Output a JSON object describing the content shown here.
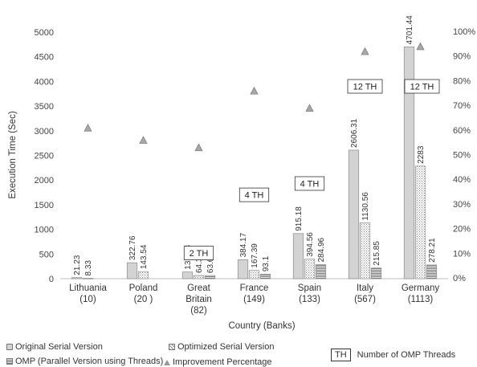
{
  "chart_data": {
    "type": "bar",
    "categories": [
      {
        "name": "Lithuania",
        "banks": "(10)"
      },
      {
        "name": "Poland",
        "banks": "(20 )"
      },
      {
        "name": "Great Britain",
        "banks": "(82)"
      },
      {
        "name": "France",
        "banks": "(149)"
      },
      {
        "name": "Spain",
        "banks": "(133)"
      },
      {
        "name": "Italy",
        "banks": "(567)"
      },
      {
        "name": "Germany",
        "banks": "(1113)"
      }
    ],
    "category_lines": [
      [
        "Lithuania",
        "(10)"
      ],
      [
        "Poland",
        "(20 )"
      ],
      [
        "Great",
        "Britain",
        "(82)"
      ],
      [
        "France",
        "(149)"
      ],
      [
        "Spain",
        "(133)"
      ],
      [
        "Italy",
        "(567)"
      ],
      [
        "Germany",
        "(1113)"
      ]
    ],
    "series": [
      {
        "name": "Original Serial Version",
        "values": [
          21.23,
          322.76,
          135.03,
          384.17,
          915.18,
          2606.31,
          4701.44
        ],
        "labels": [
          "21.23",
          "322.76",
          "135.03",
          "384.17",
          "915.18",
          "2606.31",
          "4701.44"
        ],
        "color": "#d3d3d3"
      },
      {
        "name": "Optimized Serial Version",
        "values": [
          8.33,
          143.54,
          64.39,
          167.39,
          394.56,
          1130.56,
          2283
        ],
        "labels": [
          "8.33",
          "143.54",
          "64.39",
          "167.39",
          "394.56",
          "1130.56",
          "2283"
        ],
        "color": "#f0f0f0"
      },
      {
        "name": "OMP (Parallel Version using Threads)",
        "values": [
          null,
          null,
          63.63,
          93.1,
          284.96,
          215.85,
          278.21
        ],
        "labels": [
          null,
          null,
          "63.63",
          "93.1",
          "284.96",
          "215.85",
          "278.21"
        ],
        "color": "#bdbdbd"
      }
    ],
    "line_series": {
      "name": "Improvement Percentage",
      "values": [
        61,
        56,
        53,
        76,
        69,
        92,
        94
      ],
      "color": "#a8a8a8"
    },
    "thread_annotations": [
      {
        "category": 2,
        "label": "2 TH",
        "y": 520
      },
      {
        "category": 3,
        "label": "4 TH",
        "y": 1700
      },
      {
        "category": 4,
        "label": "4 TH",
        "y": 1930
      },
      {
        "category": 5,
        "label": "12 TH",
        "y": 3900
      },
      {
        "category": 6,
        "label": "12 TH",
        "y": 3900
      }
    ],
    "y_left": {
      "label": "Execution Time (Sec)",
      "ticks": [
        "0",
        "500",
        "1000",
        "1500",
        "2000",
        "2500",
        "3000",
        "3500",
        "4000",
        "4500",
        "5000"
      ],
      "range": [
        0,
        5000
      ]
    },
    "y_right": {
      "ticks": [
        "0%",
        "10%",
        "20%",
        "30%",
        "40%",
        "50%",
        "60%",
        "70%",
        "80%",
        "90%",
        "100%"
      ],
      "range": [
        0,
        100
      ]
    },
    "xlabel": "Country (Banks)",
    "legend": {
      "items": [
        {
          "key": "orig",
          "label": "Original Serial Version"
        },
        {
          "key": "opt",
          "label": "Optimized Serial Version"
        },
        {
          "key": "omp",
          "label": "OMP (Parallel Version using Threads)"
        },
        {
          "key": "tri",
          "label": "Improvement Percentage"
        }
      ],
      "th_box": "TH",
      "th_label": "Number of OMP Threads"
    }
  }
}
